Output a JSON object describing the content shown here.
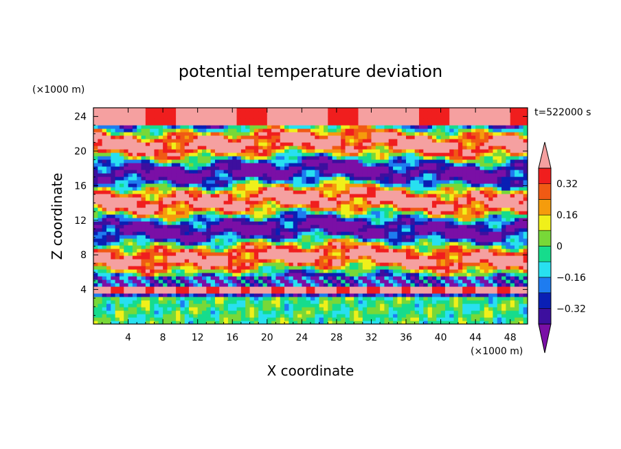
{
  "chart_data": {
    "type": "heatmap",
    "title": "potential temperature deviation",
    "xlabel": "X coordinate",
    "ylabel": "Z coordinate",
    "x_unit": "(×1000 m)",
    "y_unit": "(×1000 m)",
    "time_label": "t=522000 s",
    "xlim": [
      0,
      50
    ],
    "ylim": [
      0,
      25
    ],
    "x_ticks": [
      4,
      8,
      12,
      16,
      20,
      24,
      28,
      32,
      36,
      40,
      44,
      48
    ],
    "x_tick_labels": [
      "4",
      "8",
      "12",
      "16",
      "20",
      "24",
      "28",
      "32",
      "36",
      "40",
      "44",
      "48"
    ],
    "y_ticks": [
      4,
      8,
      12,
      16,
      20,
      24
    ],
    "y_tick_labels": [
      "4",
      "8",
      "12",
      "16",
      "20",
      "24"
    ],
    "colorbar": {
      "levels": [
        -0.4,
        -0.32,
        -0.24,
        -0.16,
        -0.08,
        0,
        0.08,
        0.16,
        0.24,
        0.32,
        0.4
      ],
      "tick_values": [
        0.32,
        0.16,
        0,
        -0.16,
        -0.32
      ],
      "tick_labels": [
        "0.32",
        "0.16",
        "0",
        "−0.16",
        "−0.32"
      ],
      "colors": [
        "#7a0fa6",
        "#3d0f9e",
        "#0a1fb4",
        "#1e7cf0",
        "#28e0f0",
        "#16dc8c",
        "#78d838",
        "#f0f01a",
        "#f59c0c",
        "#f05a14",
        "#f01e1e",
        "#f5a0a0"
      ],
      "extend": "both"
    },
    "layers": [
      {
        "z_range": [
          0,
          3
        ],
        "dominant_range": [
          -0.16,
          0.16
        ],
        "description_values": "green/cyan/yellow"
      },
      {
        "z_range": [
          3.5,
          4.5
        ],
        "dominant_range": [
          0.32,
          0.4
        ]
      },
      {
        "z_range": [
          4.5,
          25
        ],
        "dominant_range": [
          -0.4,
          0.4
        ]
      }
    ]
  }
}
